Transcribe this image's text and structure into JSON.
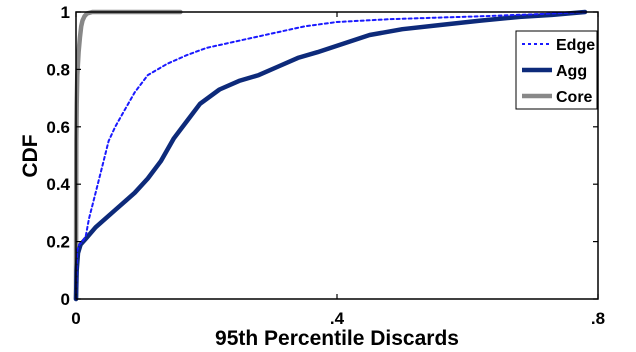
{
  "chart_data": {
    "type": "line",
    "title": "",
    "xlabel": "95th Percentile Discards",
    "ylabel": "CDF",
    "xlim": [
      0,
      0.8
    ],
    "ylim": [
      0,
      1
    ],
    "x_ticks": [
      {
        "value": 0,
        "label": "0"
      },
      {
        "value": 0.4,
        "label": ".4"
      },
      {
        "value": 0.8,
        "label": ".8"
      }
    ],
    "y_ticks": [
      {
        "value": 0,
        "label": "0"
      },
      {
        "value": 0.2,
        "label": "0.2"
      },
      {
        "value": 0.4,
        "label": "0.4"
      },
      {
        "value": 0.6,
        "label": "0.6"
      },
      {
        "value": 0.8,
        "label": "0.8"
      },
      {
        "value": 1,
        "label": "1"
      }
    ],
    "grid": false,
    "legend": "top-right",
    "series": [
      {
        "name": "Edge",
        "color": "#1a1aff",
        "style": "dotted",
        "points": [
          [
            0,
            0
          ],
          [
            0.001,
            0.12
          ],
          [
            0.002,
            0.17
          ],
          [
            0.005,
            0.19
          ],
          [
            0.01,
            0.2
          ],
          [
            0.015,
            0.22
          ],
          [
            0.02,
            0.28
          ],
          [
            0.03,
            0.37
          ],
          [
            0.04,
            0.46
          ],
          [
            0.05,
            0.55
          ],
          [
            0.06,
            0.6
          ],
          [
            0.075,
            0.66
          ],
          [
            0.09,
            0.72
          ],
          [
            0.11,
            0.78
          ],
          [
            0.14,
            0.82
          ],
          [
            0.17,
            0.85
          ],
          [
            0.2,
            0.875
          ],
          [
            0.25,
            0.9
          ],
          [
            0.3,
            0.925
          ],
          [
            0.35,
            0.95
          ],
          [
            0.4,
            0.965
          ],
          [
            0.48,
            0.975
          ],
          [
            0.55,
            0.98
          ],
          [
            0.62,
            0.985
          ],
          [
            0.7,
            0.992
          ],
          [
            0.78,
            1.0
          ]
        ]
      },
      {
        "name": "Agg",
        "color": "#0d2a7a",
        "style": "solid",
        "points": [
          [
            0,
            0
          ],
          [
            0.001,
            0.1
          ],
          [
            0.003,
            0.16
          ],
          [
            0.007,
            0.19
          ],
          [
            0.015,
            0.21
          ],
          [
            0.03,
            0.25
          ],
          [
            0.06,
            0.31
          ],
          [
            0.09,
            0.37
          ],
          [
            0.11,
            0.42
          ],
          [
            0.13,
            0.48
          ],
          [
            0.15,
            0.56
          ],
          [
            0.17,
            0.62
          ],
          [
            0.19,
            0.68
          ],
          [
            0.22,
            0.73
          ],
          [
            0.25,
            0.76
          ],
          [
            0.28,
            0.78
          ],
          [
            0.31,
            0.81
          ],
          [
            0.34,
            0.84
          ],
          [
            0.37,
            0.86
          ],
          [
            0.41,
            0.89
          ],
          [
            0.45,
            0.92
          ],
          [
            0.5,
            0.94
          ],
          [
            0.56,
            0.955
          ],
          [
            0.62,
            0.97
          ],
          [
            0.68,
            0.983
          ],
          [
            0.73,
            0.99
          ],
          [
            0.78,
            1.0
          ]
        ]
      },
      {
        "name": "Core",
        "color": "#888888",
        "style": "solid",
        "points": [
          [
            0,
            0
          ],
          [
            0.0005,
            0.55
          ],
          [
            0.001,
            0.68
          ],
          [
            0.002,
            0.78
          ],
          [
            0.004,
            0.86
          ],
          [
            0.006,
            0.91
          ],
          [
            0.008,
            0.95
          ],
          [
            0.01,
            0.97
          ],
          [
            0.013,
            0.985
          ],
          [
            0.017,
            0.995
          ],
          [
            0.025,
            1.0
          ],
          [
            0.16,
            1.0
          ]
        ]
      }
    ]
  }
}
